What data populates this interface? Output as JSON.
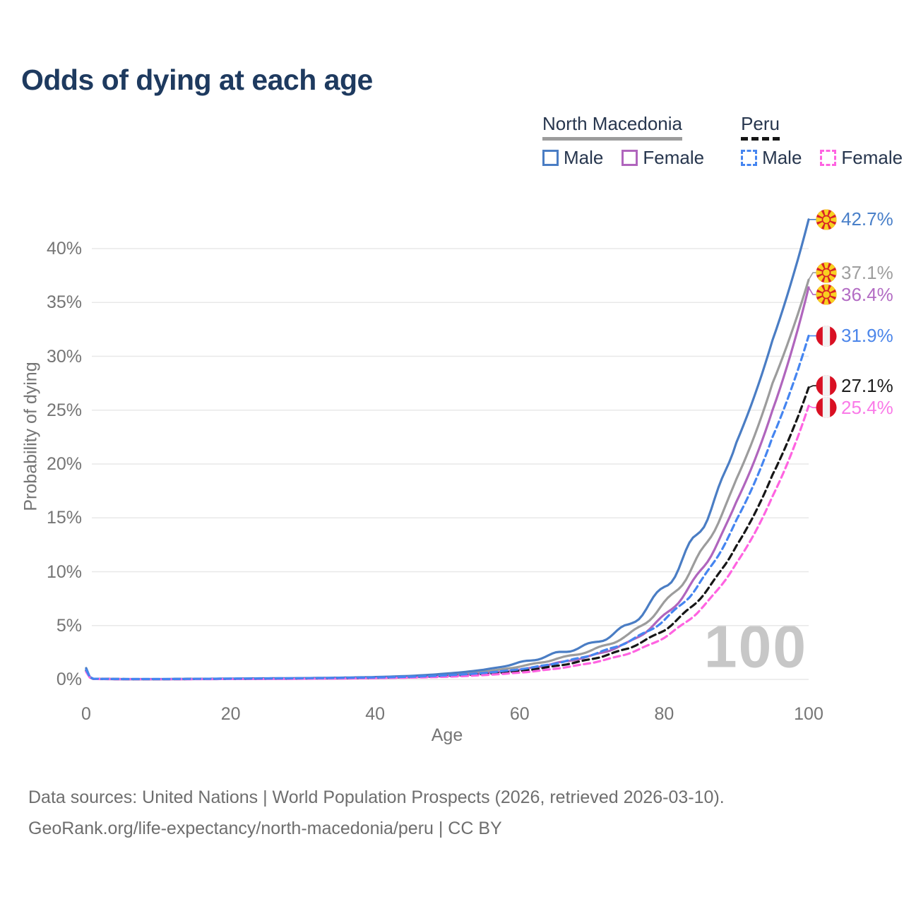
{
  "title": "Odds of dying at each age",
  "legend": {
    "groups": [
      {
        "label": "North Macedonia",
        "items": [
          {
            "label": "Male"
          },
          {
            "label": "Female"
          }
        ]
      },
      {
        "label": "Peru",
        "items": [
          {
            "label": "Male"
          },
          {
            "label": "Female"
          }
        ]
      }
    ]
  },
  "chart_data": {
    "type": "line",
    "title": "Odds of dying at each age",
    "xlabel": "Age",
    "ylabel": "Probability of dying",
    "xlim": [
      0,
      100
    ],
    "ylim_pct": [
      0,
      44
    ],
    "grid": "horizontal-only",
    "watermark": "100",
    "x_ticks": [
      {
        "v": 0,
        "label": "0"
      },
      {
        "v": 20,
        "label": "20"
      },
      {
        "v": 40,
        "label": "40"
      },
      {
        "v": 60,
        "label": "60"
      },
      {
        "v": 80,
        "label": "80"
      },
      {
        "v": 100,
        "label": "100"
      }
    ],
    "y_ticks": [
      {
        "v": 0,
        "label": "0%"
      },
      {
        "v": 5,
        "label": "5%"
      },
      {
        "v": 10,
        "label": "10%"
      },
      {
        "v": 15,
        "label": "15%"
      },
      {
        "v": 20,
        "label": "20%"
      },
      {
        "v": 25,
        "label": "25%"
      },
      {
        "v": 30,
        "label": "30%"
      },
      {
        "v": 35,
        "label": "35%"
      },
      {
        "v": 40,
        "label": "40%"
      }
    ],
    "ages": [
      0,
      1,
      5,
      10,
      15,
      20,
      25,
      30,
      35,
      40,
      45,
      50,
      55,
      60,
      65,
      70,
      75,
      80,
      85,
      90,
      95,
      100
    ],
    "series": [
      {
        "name": "North Macedonia",
        "country": "North Macedonia",
        "sex": "both",
        "color": "#9c9c9c",
        "label_color": "#9e9e9e",
        "dashed": false,
        "flag": "north-macedonia",
        "end_label": "37.1%",
        "values_pct": [
          0.95,
          0.045,
          0.028,
          0.026,
          0.04,
          0.06,
          0.08,
          0.1,
          0.13,
          0.18,
          0.27,
          0.44,
          0.72,
          1.2,
          1.9,
          2.7,
          4.1,
          7.0,
          11.6,
          18.6,
          27.5,
          37.1
        ]
      },
      {
        "name": "North Macedonia Female",
        "country": "North Macedonia",
        "sex": "female",
        "color": "#b065bd",
        "label_color": "#b36cc4",
        "dashed": false,
        "flag": "north-macedonia",
        "end_label": "36.4%",
        "values_pct": [
          0.85,
          0.04,
          0.025,
          0.022,
          0.03,
          0.04,
          0.05,
          0.07,
          0.09,
          0.13,
          0.2,
          0.33,
          0.55,
          0.9,
          1.5,
          2.2,
          3.4,
          5.9,
          10.0,
          16.5,
          25.0,
          36.4
        ]
      },
      {
        "name": "North Macedonia Male",
        "country": "North Macedonia",
        "sex": "male",
        "color": "#4a7dc4",
        "label_color": "#4a80c9",
        "dashed": false,
        "flag": "north-macedonia",
        "end_label": "42.7%",
        "values_pct": [
          1.05,
          0.05,
          0.03,
          0.03,
          0.05,
          0.08,
          0.1,
          0.12,
          0.16,
          0.22,
          0.33,
          0.55,
          0.9,
          1.55,
          2.4,
          3.3,
          5.0,
          8.6,
          14.0,
          22.0,
          31.5,
          42.7
        ]
      },
      {
        "name": "Peru",
        "country": "Peru",
        "sex": "both",
        "color": "#161616",
        "label_color": "#1d1d1d",
        "dashed": true,
        "flag": "peru",
        "end_label": "27.1%",
        "values_pct": [
          0.8,
          0.05,
          0.03,
          0.025,
          0.04,
          0.055,
          0.07,
          0.09,
          0.11,
          0.15,
          0.21,
          0.31,
          0.49,
          0.78,
          1.25,
          1.9,
          2.9,
          4.6,
          7.6,
          12.4,
          19.0,
          27.1
        ]
      },
      {
        "name": "Peru Female",
        "country": "Peru",
        "sex": "female",
        "color": "#ff63e1",
        "label_color": "#fa7ae8",
        "dashed": true,
        "flag": "peru",
        "end_label": "25.4%",
        "values_pct": [
          0.7,
          0.045,
          0.025,
          0.02,
          0.03,
          0.04,
          0.05,
          0.065,
          0.085,
          0.12,
          0.17,
          0.25,
          0.4,
          0.63,
          1.0,
          1.55,
          2.4,
          3.9,
          6.5,
          10.8,
          17.0,
          25.4
        ]
      },
      {
        "name": "Peru Male",
        "country": "Peru",
        "sex": "male",
        "color": "#4585f0",
        "label_color": "#4c86ea",
        "dashed": true,
        "flag": "peru",
        "end_label": "31.9%",
        "values_pct": [
          0.9,
          0.06,
          0.035,
          0.03,
          0.05,
          0.07,
          0.09,
          0.11,
          0.14,
          0.18,
          0.25,
          0.38,
          0.6,
          0.95,
          1.5,
          2.3,
          3.5,
          5.5,
          9.0,
          14.8,
          22.5,
          31.9
        ]
      }
    ]
  },
  "colors": {
    "title_text": "#1e3a5f",
    "legend_text": "#27364e",
    "axis_text": "#757575",
    "gridline": "#e8e8e8",
    "watermark": "#c7c7c7",
    "footer_text": "#6e6e6e",
    "flag_mk_red": "#d82126",
    "flag_mk_yellow": "#f8d020",
    "flag_pe_red": "#d91023"
  },
  "footer": {
    "line1": "Data sources: United Nations | World Population Prospects (2026, retrieved 2026-03-10).",
    "line2": "GeoRank.org/life-expectancy/north-macedonia/peru | CC BY"
  }
}
